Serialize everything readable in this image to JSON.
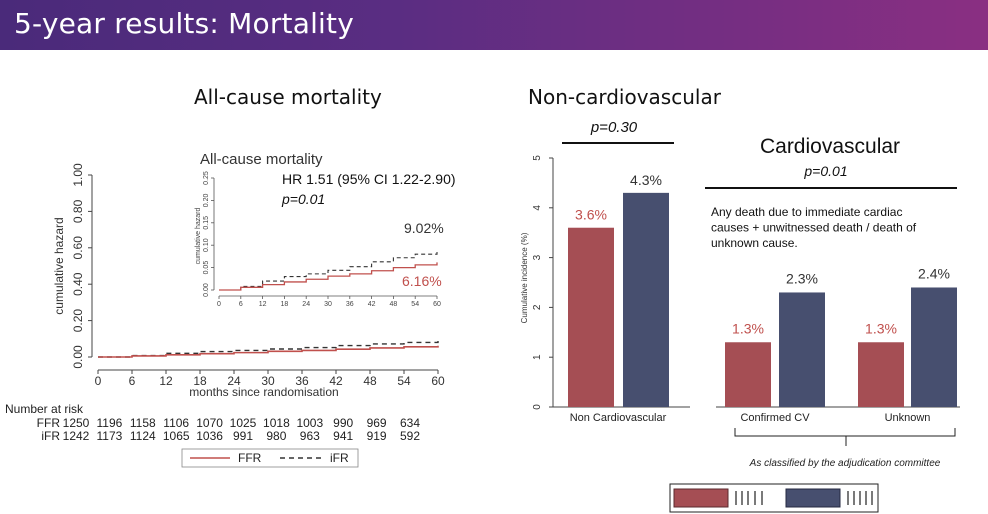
{
  "page": {
    "title": "5-year results: Mortality",
    "left_title": "All-cause mortality",
    "right_title": "Non-cardiovascular",
    "cardio_title": "Cardiovascular",
    "colors": {
      "ffr": "#c0504d",
      "ifr": "#1f3864",
      "bar_red": "#a54e54",
      "bar_blue": "#474f6f",
      "header_start": "#4a2a7a",
      "header_end": "#8a2f82"
    }
  },
  "chart_data": [
    {
      "type": "line",
      "title": "All-cause mortality",
      "xlabel": "months since randomisation",
      "ylabel": "cumulative hazard",
      "xticks": [
        "0",
        "6",
        "12",
        "18",
        "24",
        "30",
        "36",
        "42",
        "48",
        "54",
        "60"
      ],
      "yticks": [
        "0.00",
        "0.20",
        "0.40",
        "0.60",
        "0.80",
        "1.00"
      ],
      "xlim": [
        0,
        60
      ],
      "ylim": [
        0,
        1.0
      ],
      "series": [
        {
          "name": "FFR",
          "style": "solid",
          "color": "#c0504d",
          "x": [
            0,
            6,
            12,
            18,
            24,
            30,
            36,
            42,
            48,
            54,
            60
          ],
          "y": [
            0,
            0.006,
            0.012,
            0.018,
            0.024,
            0.031,
            0.036,
            0.043,
            0.05,
            0.056,
            0.0616
          ]
        },
        {
          "name": "iFR",
          "style": "dashed",
          "color": "#333333",
          "x": [
            0,
            6,
            12,
            18,
            24,
            30,
            36,
            42,
            48,
            54,
            60
          ],
          "y": [
            0,
            0.008,
            0.02,
            0.03,
            0.036,
            0.044,
            0.052,
            0.063,
            0.072,
            0.08,
            0.0902
          ]
        }
      ],
      "legend": [
        "FFR",
        "iFR"
      ],
      "risk_table": {
        "label": "Number at risk",
        "rows": [
          {
            "name": "FFR",
            "values": [
              "1250",
              "1196",
              "1158",
              "1106",
              "1070",
              "1025",
              "1018",
              "1003",
              "990",
              "969",
              "634"
            ]
          },
          {
            "name": "iFR",
            "values": [
              "1242",
              "1173",
              "1124",
              "1065",
              "1036",
              "991",
              "980",
              "963",
              "941",
              "919",
              "592"
            ]
          }
        ]
      },
      "inset": {
        "title": "All-cause mortality",
        "ylabel": "cumulative hazard",
        "yticks": [
          "0.00",
          "0.05",
          "0.10",
          "0.15",
          "0.20",
          "0.25"
        ],
        "xticks": [
          "0",
          "6",
          "12",
          "18",
          "24",
          "30",
          "36",
          "42",
          "48",
          "54",
          "60"
        ],
        "ylim": [
          0,
          0.25
        ],
        "hr_text": "HR 1.51 (95% CI 1.22-2.90)",
        "p_text": "p=0.01",
        "ifr_label": "9.02%",
        "ffr_label": "6.16%"
      }
    },
    {
      "type": "bar",
      "title": "Non-cardiovascular",
      "p_text": "p=0.30",
      "ylabel": "Cumulative incidence (%)",
      "yticks": [
        "0",
        "1",
        "2",
        "3",
        "4",
        "5"
      ],
      "ylim": [
        0,
        5
      ],
      "categories": [
        "Non Cardiovascular"
      ],
      "series": [
        {
          "values": [
            3.6
          ],
          "labels": [
            "3.6%"
          ],
          "color": "#a54e54"
        },
        {
          "values": [
            4.3
          ],
          "labels": [
            "4.3%"
          ],
          "color": "#474f6f"
        }
      ]
    },
    {
      "type": "bar",
      "title": "Cardiovascular",
      "p_text": "p=0.01",
      "note": "Any death due to immediate cardiac causes + unwitnessed death / death of unknown cause.",
      "categories": [
        "Confirmed CV",
        "Unknown"
      ],
      "series": [
        {
          "values": [
            1.3,
            1.3
          ],
          "labels": [
            "1.3%",
            "1.3%"
          ],
          "color": "#a54e54"
        },
        {
          "values": [
            2.3,
            2.4
          ],
          "labels": [
            "2.3%",
            "2.4%"
          ],
          "color": "#474f6f"
        }
      ],
      "footnote": "As classified by the adjudication committee"
    }
  ]
}
